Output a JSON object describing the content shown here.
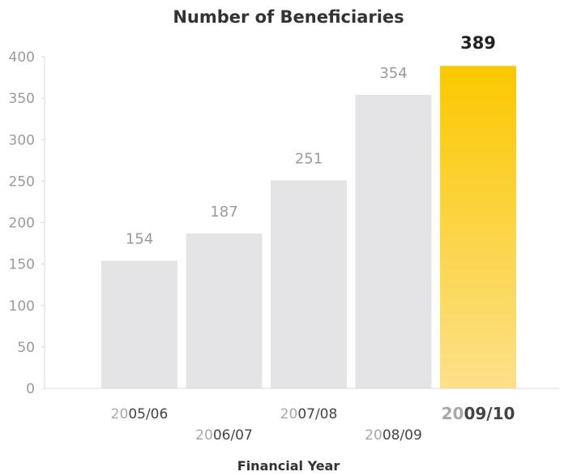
{
  "chart_data": {
    "type": "bar",
    "title": "Number of Beneficiaries",
    "xlabel": "Financial Year",
    "ylabel": "",
    "categories": [
      "2005/06",
      "2006/07",
      "2007/08",
      "2008/09",
      "2009/10"
    ],
    "values": [
      154,
      187,
      251,
      354,
      389
    ],
    "ylim": [
      0,
      400
    ],
    "yticks": [
      0,
      50,
      100,
      150,
      200,
      250,
      300,
      350,
      400
    ],
    "highlight_index": 4,
    "grid": false,
    "colors": {
      "bar": "#e4e4e6",
      "highlight_top": "#fbc800",
      "highlight_bottom": "#fde08a",
      "axis": "#d8d8d8"
    }
  }
}
